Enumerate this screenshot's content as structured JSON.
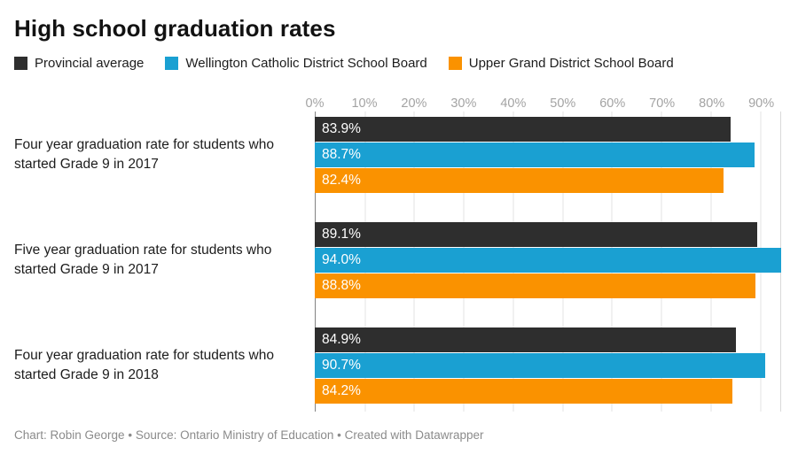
{
  "title": "High school graduation rates",
  "chart_data": {
    "type": "bar",
    "orientation": "horizontal",
    "title": "High school graduation rates",
    "xlabel": "",
    "ylabel": "",
    "grid": true,
    "legend_position": "top",
    "unit": "%",
    "categories": [
      "Four year graduation rate for students who started Grade 9 in 2017",
      "Five year graduation rate for students who started Grade 9 in 2017",
      "Four year graduation rate for students who started Grade 9 in 2018"
    ],
    "series": [
      {
        "name": "Provincial average",
        "color": "#2e2e2e",
        "values": [
          83.9,
          89.1,
          84.9
        ],
        "value_labels": [
          "83.9%",
          "89.1%",
          "84.9%"
        ]
      },
      {
        "name": "Wellington Catholic District School Board",
        "color": "#1aa0d2",
        "values": [
          88.7,
          94.0,
          90.7
        ],
        "value_labels": [
          "88.7%",
          "94.0%",
          "90.7%"
        ]
      },
      {
        "name": "Upper Grand District School Board",
        "color": "#fa9200",
        "values": [
          82.4,
          88.8,
          84.2
        ],
        "value_labels": [
          "82.4%",
          "88.8%",
          "84.2%"
        ]
      }
    ],
    "axis": {
      "max": 94.0,
      "ticks": [
        {
          "label": "0%",
          "value": 0
        },
        {
          "label": "10%",
          "value": 10
        },
        {
          "label": "20%",
          "value": 20
        },
        {
          "label": "30%",
          "value": 30
        },
        {
          "label": "40%",
          "value": 40
        },
        {
          "label": "50%",
          "value": 50
        },
        {
          "label": "60%",
          "value": 60
        },
        {
          "label": "70%",
          "value": 70
        },
        {
          "label": "80%",
          "value": 80
        },
        {
          "label": "90%",
          "value": 90
        }
      ]
    }
  },
  "footer": {
    "credit": "Chart: Robin George",
    "separator": " • ",
    "source": "Source: Ontario Ministry of Education",
    "tool": "Created with Datawrapper"
  }
}
